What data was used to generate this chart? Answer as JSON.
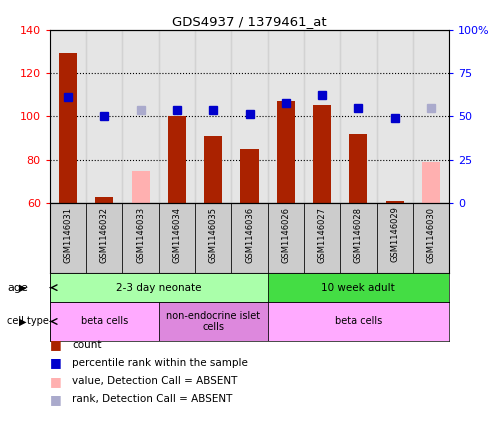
{
  "title": "GDS4937 / 1379461_at",
  "samples": [
    "GSM1146031",
    "GSM1146032",
    "GSM1146033",
    "GSM1146034",
    "GSM1146035",
    "GSM1146036",
    "GSM1146026",
    "GSM1146027",
    "GSM1146028",
    "GSM1146029",
    "GSM1146030"
  ],
  "count_values": [
    129,
    63,
    null,
    100,
    91,
    85,
    107,
    105,
    92,
    61,
    61
  ],
  "count_absent": [
    null,
    null,
    75,
    null,
    null,
    null,
    null,
    null,
    null,
    null,
    79
  ],
  "rank_values": [
    109,
    100,
    null,
    103,
    103,
    101,
    106,
    110,
    104,
    99,
    null
  ],
  "rank_absent": [
    null,
    null,
    103,
    null,
    null,
    null,
    null,
    null,
    null,
    null,
    104
  ],
  "ylim_left": [
    60,
    140
  ],
  "ylim_right": [
    0,
    100
  ],
  "yticks_left": [
    60,
    80,
    100,
    120,
    140
  ],
  "yticks_right": [
    0,
    25,
    50,
    75,
    100
  ],
  "ytick_labels_right": [
    "0",
    "25",
    "50",
    "75",
    "100%"
  ],
  "bar_color": "#aa2200",
  "bar_absent_color": "#ffb0b0",
  "rank_color": "#0000cc",
  "rank_absent_color": "#aaaacc",
  "age_groups": [
    {
      "label": "2-3 day neonate",
      "start": 0,
      "end": 6,
      "color": "#aaffaa"
    },
    {
      "label": "10 week adult",
      "start": 6,
      "end": 11,
      "color": "#44dd44"
    }
  ],
  "cell_groups": [
    {
      "label": "beta cells",
      "start": 0,
      "end": 3,
      "color": "#ffaaff"
    },
    {
      "label": "non-endocrine islet\ncells",
      "start": 3,
      "end": 6,
      "color": "#dd88dd"
    },
    {
      "label": "beta cells",
      "start": 6,
      "end": 11,
      "color": "#ffaaff"
    }
  ],
  "legend_items": [
    {
      "color": "#aa2200",
      "label": "count"
    },
    {
      "color": "#0000cc",
      "label": "percentile rank within the sample"
    },
    {
      "color": "#ffb0b0",
      "label": "value, Detection Call = ABSENT"
    },
    {
      "color": "#aaaacc",
      "label": "rank, Detection Call = ABSENT"
    }
  ],
  "bar_width": 0.5,
  "rank_marker_size": 6,
  "col_bg_color": "#cccccc",
  "plot_bg_color": "#ffffff"
}
